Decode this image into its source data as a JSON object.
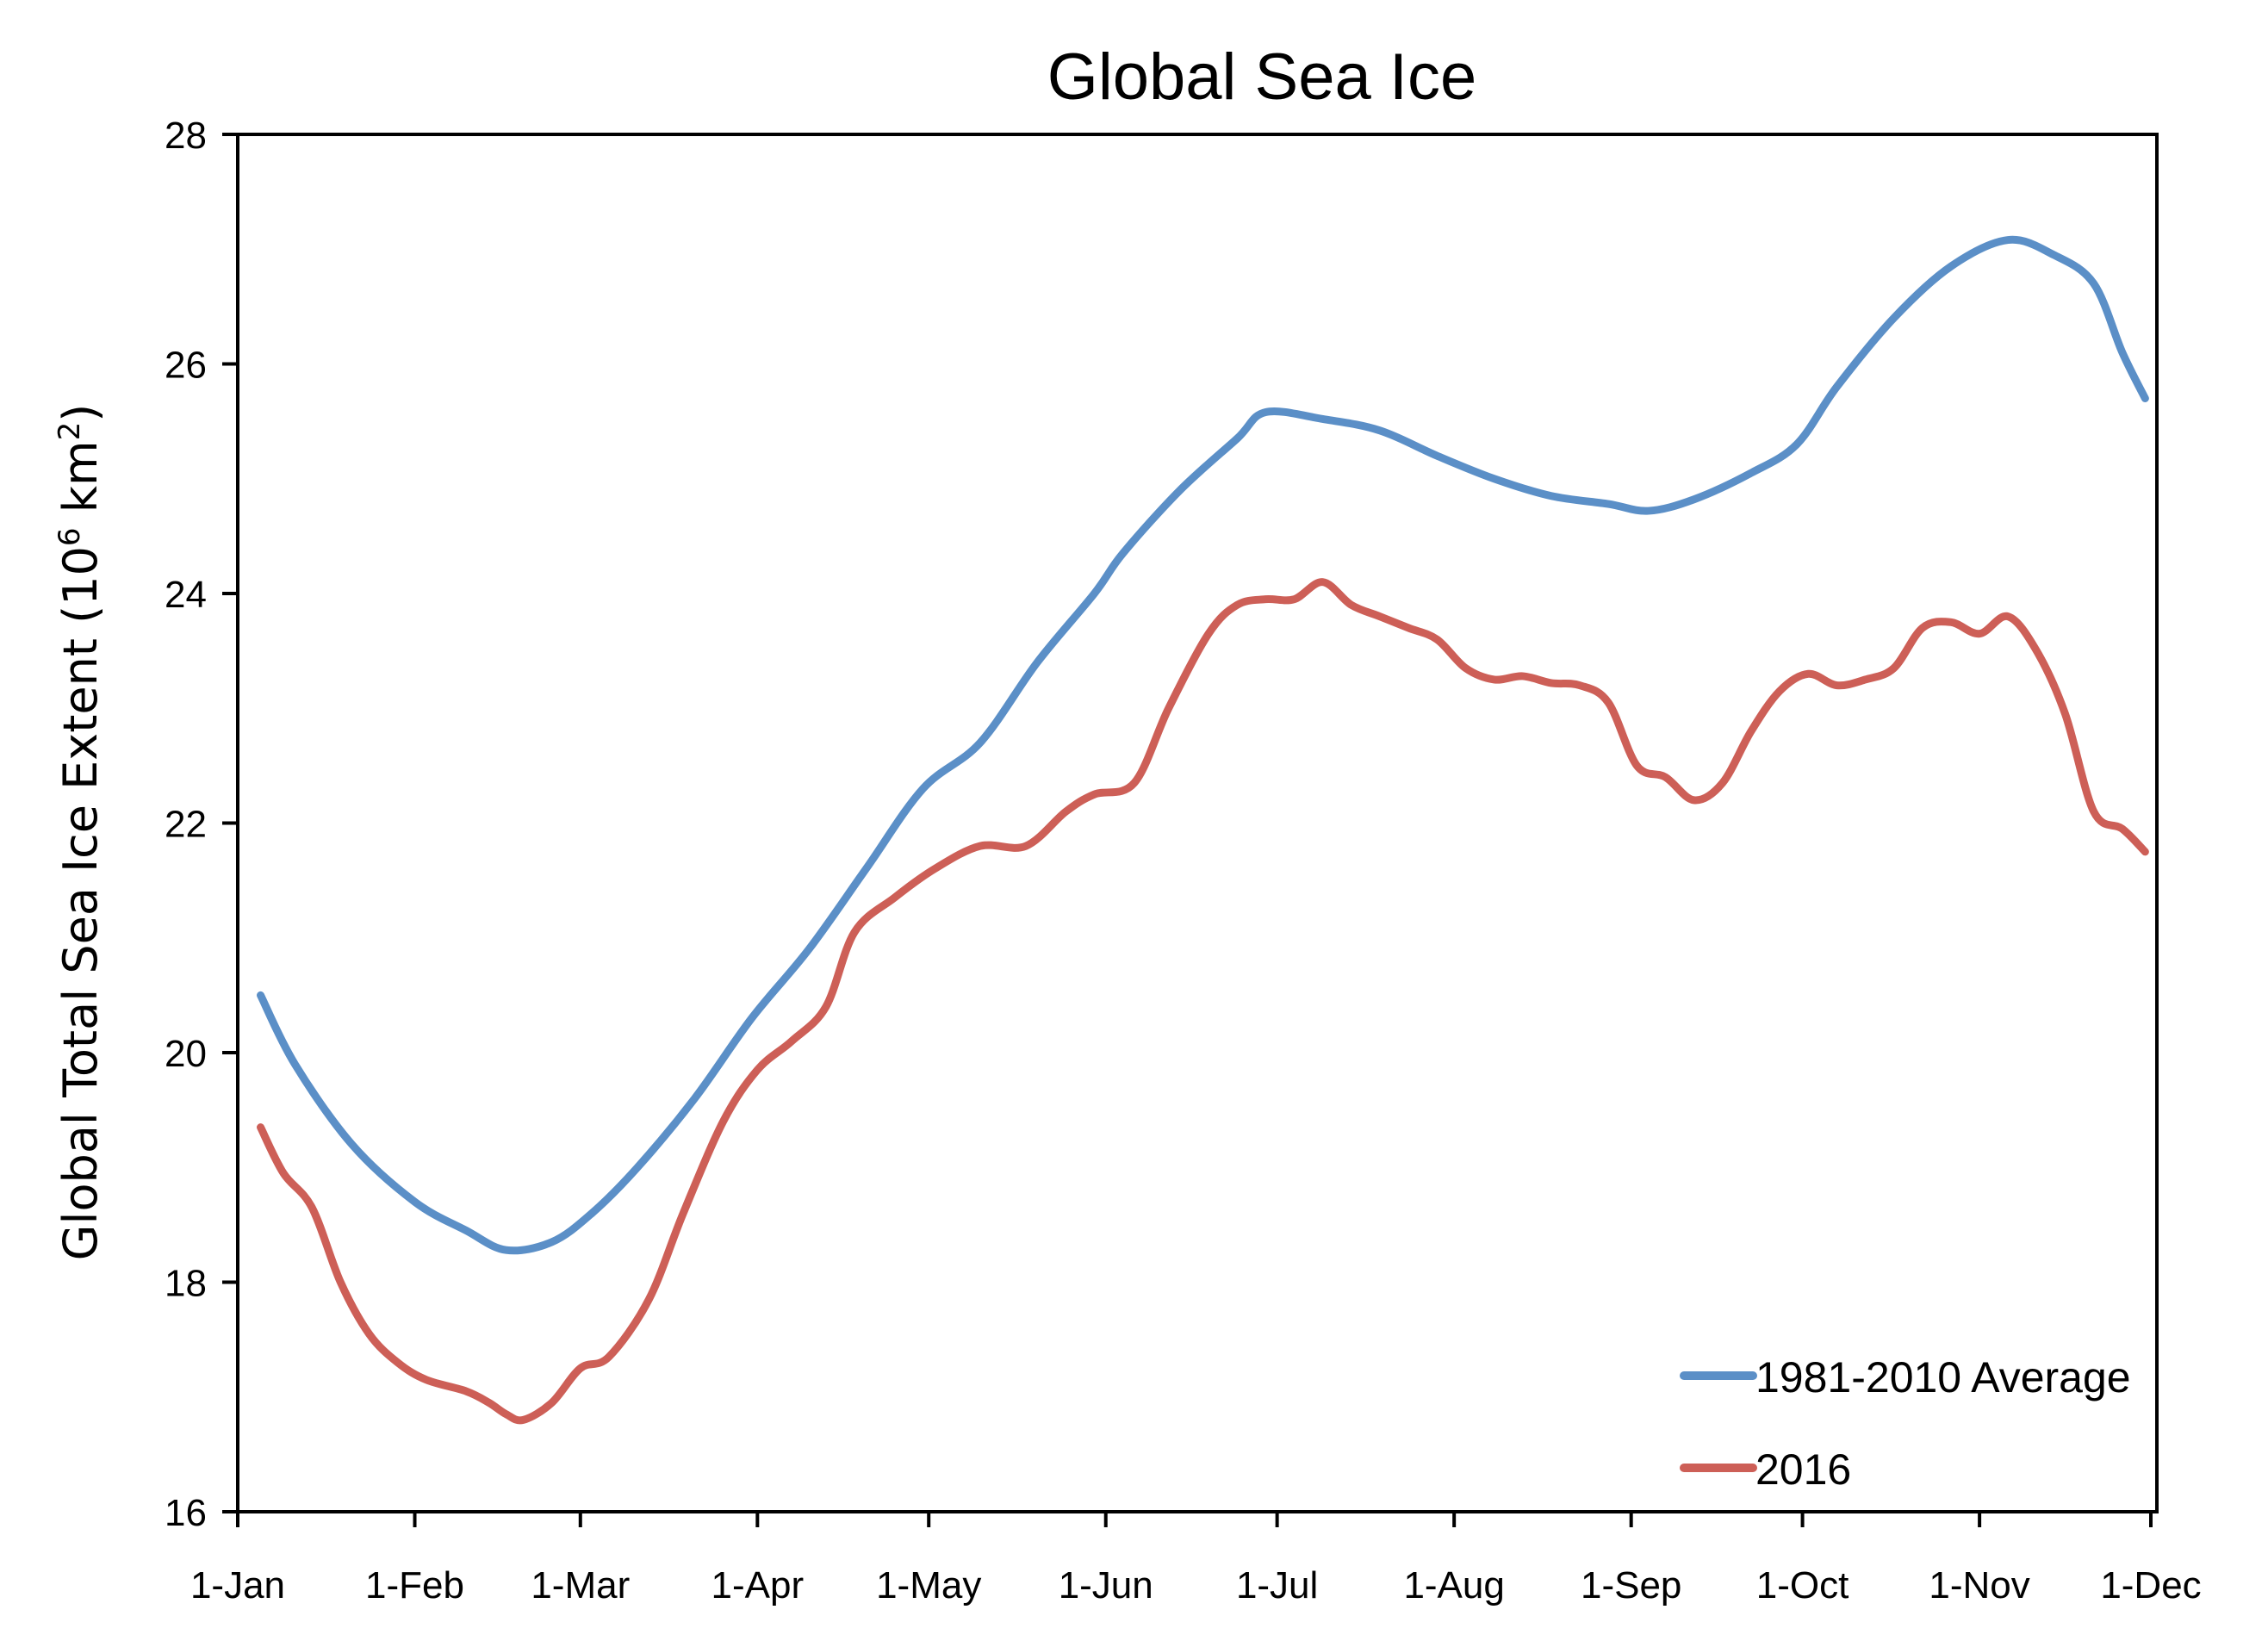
{
  "chart_data": {
    "type": "line",
    "title": "Global Sea Ice",
    "xlabel": "",
    "ylabel_main": "Global Total Sea Ice Extent (10",
    "ylabel_sup1": "6",
    "ylabel_mid": " km",
    "ylabel_sup2": "2",
    "ylabel_end": ")",
    "ylabel": "Global Total Sea Ice Extent (10^6 km^2)",
    "ylim": [
      16,
      28
    ],
    "xlim_days": [
      0,
      334
    ],
    "grid": false,
    "legend_position": "bottom-right",
    "y_ticks": [
      16,
      18,
      20,
      22,
      24,
      26,
      28
    ],
    "x_ticks": [
      {
        "label": "1-Jan",
        "day": 0
      },
      {
        "label": "1-Feb",
        "day": 31
      },
      {
        "label": "1-Mar",
        "day": 60
      },
      {
        "label": "1-Apr",
        "day": 91
      },
      {
        "label": "1-May",
        "day": 121
      },
      {
        "label": "1-Jun",
        "day": 152
      },
      {
        "label": "1-Jul",
        "day": 182
      },
      {
        "label": "1-Aug",
        "day": 213
      },
      {
        "label": "1-Sep",
        "day": 244
      },
      {
        "label": "1-Oct",
        "day": 274
      },
      {
        "label": "1-Nov",
        "day": 305
      },
      {
        "label": "1-Dec",
        "day": 335
      }
    ],
    "series": [
      {
        "name": "1981-2010 Average",
        "color": "#5b8fc7",
        "x": [
          4,
          10,
          20,
          31,
          40,
          47,
          55,
          62,
          70,
          80,
          90,
          100,
          110,
          120,
          130,
          140,
          150,
          155,
          165,
          175,
          180,
          190,
          200,
          210,
          220,
          230,
          240,
          247,
          255,
          265,
          273,
          280,
          290,
          300,
          310,
          318,
          325,
          330,
          334
        ],
        "values": [
          20.5,
          19.9,
          19.2,
          18.7,
          18.45,
          18.28,
          18.35,
          18.6,
          19.0,
          19.6,
          20.3,
          20.9,
          21.6,
          22.3,
          22.7,
          23.4,
          24.0,
          24.35,
          24.9,
          25.35,
          25.58,
          25.52,
          25.42,
          25.2,
          25.0,
          24.85,
          24.78,
          24.72,
          24.82,
          25.05,
          25.3,
          25.8,
          26.4,
          26.85,
          27.08,
          26.95,
          26.7,
          26.1,
          25.7
        ]
      },
      {
        "name": "2016",
        "color": "#cd5f57",
        "x": [
          4,
          8,
          13,
          18,
          23,
          28,
          33,
          40,
          44,
          47,
          50,
          55,
          60,
          65,
          72,
          78,
          85,
          91,
          97,
          103,
          108,
          115,
          122,
          130,
          138,
          145,
          150,
          157,
          163,
          170,
          175,
          180,
          185,
          190,
          195,
          200,
          205,
          210,
          215,
          220,
          225,
          230,
          235,
          240,
          245,
          250,
          255,
          260,
          265,
          270,
          275,
          280,
          285,
          290,
          295,
          300,
          305,
          310,
          315,
          320,
          325,
          330,
          334
        ],
        "values": [
          19.35,
          18.95,
          18.65,
          18.0,
          17.55,
          17.3,
          17.15,
          17.05,
          16.95,
          16.85,
          16.8,
          16.95,
          17.25,
          17.35,
          17.85,
          18.6,
          19.4,
          19.85,
          20.1,
          20.4,
          21.05,
          21.35,
          21.6,
          21.8,
          21.8,
          22.1,
          22.25,
          22.35,
          23.0,
          23.65,
          23.9,
          23.95,
          23.95,
          24.1,
          23.9,
          23.8,
          23.7,
          23.6,
          23.35,
          23.25,
          23.28,
          23.22,
          23.2,
          23.05,
          22.5,
          22.4,
          22.2,
          22.35,
          22.8,
          23.15,
          23.3,
          23.2,
          23.25,
          23.35,
          23.7,
          23.75,
          23.65,
          23.8,
          23.5,
          22.95,
          22.1,
          21.95,
          21.75
        ]
      }
    ]
  }
}
